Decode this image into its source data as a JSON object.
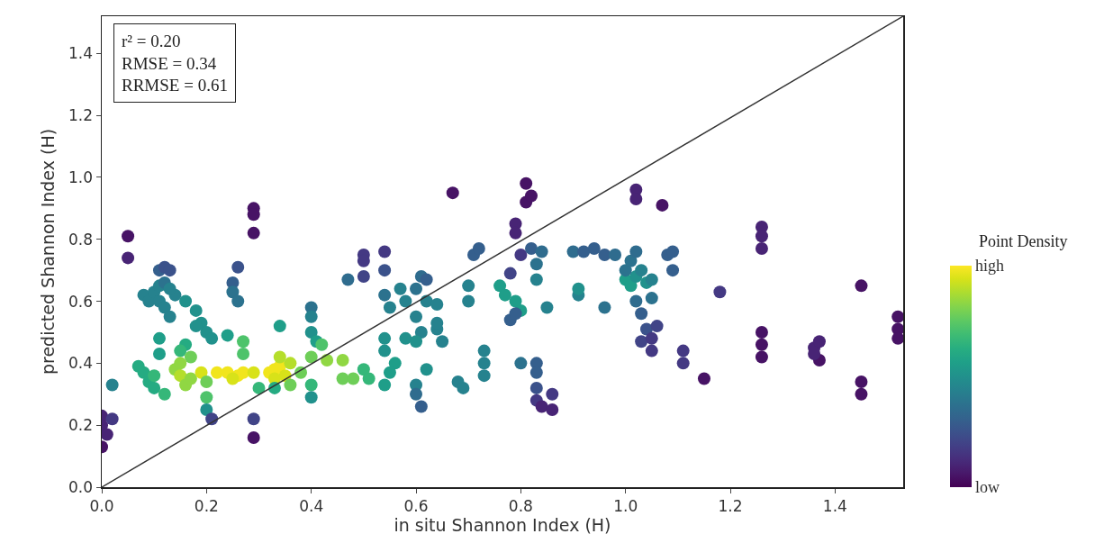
{
  "chart_data": {
    "type": "scatter",
    "xlabel": "in situ Shannon Index (H)",
    "ylabel": "predicted Shannon Index (H)",
    "clabel": "Point Density",
    "annotations": [
      "r² = 0.20\nRMSE = 0.34\nRRMSE = 0.61"
    ],
    "xlim": [
      0,
      1.53
    ],
    "ylim": [
      0,
      1.52
    ],
    "xticks": [
      {
        "value": 0,
        "label": "0.0"
      },
      0.2,
      0.4,
      0.6,
      0.8,
      {
        "value": 1,
        "label": "1.0"
      },
      1.2,
      1.4
    ],
    "yticks": [
      {
        "value": 0,
        "label": "0.0"
      },
      0.2,
      0.4,
      0.6,
      0.8,
      {
        "value": 1,
        "label": "1.0"
      },
      1.2,
      1.4
    ],
    "clim": [
      0,
      1
    ],
    "cticks": [
      {
        "value": 1,
        "label": "high"
      },
      {
        "value": 0,
        "label": "low"
      }
    ],
    "grid": false,
    "marker": "circle",
    "series": [
      {
        "colors": [
          "#482475",
          "#482475",
          "#482475",
          "#471365",
          "#443983",
          "#26828e",
          "#471365",
          "#482475",
          "#26828e",
          "#26828e",
          "#26828e",
          "#26828e",
          "#2c728e",
          "#355f8d",
          "#3b528b",
          "#3b528b",
          "#26828e",
          "#26828e",
          "#26828e",
          "#26828e",
          "#26828e",
          "#21918c",
          "#21918c",
          "#21918c",
          "#21918c",
          "#21918c",
          "#21918c",
          "#1f9e89",
          "#1f9e89",
          "#25ab82",
          "#35b779",
          "#6ece58",
          "#25ab82",
          "#25ab82",
          "#25ab82",
          "#25ab82",
          "#35b779",
          "#35b779",
          "#90d743",
          "#b5de2b",
          "#90d743",
          "#90d743",
          "#90d743",
          "#d8e219",
          "#6ece58",
          "#f1e51d",
          "#f1e51d",
          "#f1e51d",
          "#f1e51d",
          "#d8e219",
          "#d8e219",
          "#f1e51d",
          "#f1e51d",
          "#f1e51d",
          "#d8e219",
          "#d8e219",
          "#b5de2b",
          "#b5de2b",
          "#6ece58",
          "#6ece58",
          "#4ec36b",
          "#21918c",
          "#414487",
          "#1f9e89",
          "#4ec36b",
          "#4ec36b",
          "#355f8d",
          "#2c728e",
          "#3b528b",
          "#2c728e",
          "#471365",
          "#471365",
          "#471365",
          "#414487",
          "#471365",
          "#1f9e89",
          "#35b779",
          "#25ab82",
          "#2c728e",
          "#26828e",
          "#21918c",
          "#1f9e89",
          "#4ec36b",
          "#90d743",
          "#90d743",
          "#6ece58",
          "#35b779",
          "#21918c",
          "#443983",
          "#443983",
          "#414487",
          "#443983",
          "#3b528b",
          "#2f6c8e",
          "#6ece58",
          "#6ece58",
          "#35b779",
          "#35b779",
          "#2c728e",
          "#26828e",
          "#21918c",
          "#21918c",
          "#1f9e89",
          "#1f9e89",
          "#1f9e89",
          "#26828e",
          "#26828e",
          "#21918c",
          "#2c728e",
          "#2f6c8e",
          "#355f8d",
          "#26828e",
          "#26828e",
          "#26828e",
          "#21918c",
          "#21918c",
          "#26828e",
          "#2f6c8e",
          "#355f8d",
          "#26828e",
          "#26828e",
          "#26828e",
          "#26828e",
          "#471365",
          "#26828e",
          "#26828e",
          "#26828e",
          "#26828e",
          "#355f8d",
          "#355f8d",
          "#26828e",
          "#26828e",
          "#26828e",
          "#1f9e89",
          "#1f9e89",
          "#1f9e89",
          "#1f9e89",
          "#355f8d",
          "#355f8d",
          "#482475",
          "#482475",
          "#443983",
          "#414487",
          "#471365",
          "#471365",
          "#471365",
          "#355f8d",
          "#2c728e",
          "#2f6c8e",
          "#26828e",
          "#2c728e",
          "#355f8d",
          "#355f8d",
          "#3b528b",
          "#443983",
          "#482475",
          "#443983",
          "#482475",
          "#26828e",
          "#2f6c8e",
          "#355f8d",
          "#355f8d",
          "#355f8d",
          "#26828e",
          "#21918c",
          "#2c728e",
          "#2f6c8e",
          "#1f9e89",
          "#1f9e89",
          "#21918c",
          "#26828e",
          "#2c728e",
          "#2c728e",
          "#2f6c8e",
          "#2f6c8e",
          "#355f8d",
          "#3b528b",
          "#414487",
          "#443983",
          "#443983",
          "#414487",
          "#2c728e",
          "#21918c",
          "#26828e",
          "#482475",
          "#482475",
          "#471365",
          "#355f8d",
          "#355f8d",
          "#355f8d",
          "#443983",
          "#443983",
          "#471365",
          "#443983",
          "#482475",
          "#482475",
          "#482475",
          "#471365",
          "#471365",
          "#471365",
          "#482475",
          "#482475",
          "#471365",
          "#482475",
          "#471365",
          "#471365",
          "#471365",
          "#471365",
          "#471365",
          "#471365"
        ],
        "x": [
          0,
          0,
          0.01,
          0,
          0.02,
          0.02,
          0.05,
          0.05,
          0.08,
          0.09,
          0.1,
          0.11,
          0.12,
          0.11,
          0.12,
          0.13,
          0.11,
          0.12,
          0.13,
          0.14,
          0.13,
          0.16,
          0.18,
          0.19,
          0.2,
          0.21,
          0.18,
          0.11,
          0.11,
          0.16,
          0.15,
          0.17,
          0.07,
          0.08,
          0.09,
          0.1,
          0.12,
          0.1,
          0.14,
          0.15,
          0.16,
          0.17,
          0.15,
          0.19,
          0.2,
          0.22,
          0.24,
          0.26,
          0.27,
          0.29,
          0.25,
          0.32,
          0.33,
          0.34,
          0.35,
          0.33,
          0.36,
          0.34,
          0.38,
          0.36,
          0.2,
          0.2,
          0.21,
          0.24,
          0.27,
          0.27,
          0.25,
          0.25,
          0.26,
          0.26,
          0.29,
          0.29,
          0.29,
          0.29,
          0.29,
          0.34,
          0.3,
          0.33,
          0.4,
          0.4,
          0.4,
          0.41,
          0.42,
          0.43,
          0.46,
          0.4,
          0.4,
          0.4,
          0.5,
          0.5,
          0.5,
          0.54,
          0.54,
          0.47,
          0.46,
          0.48,
          0.5,
          0.51,
          0.54,
          0.55,
          0.54,
          0.54,
          0.56,
          0.54,
          0.55,
          0.57,
          0.58,
          0.58,
          0.6,
          0.61,
          0.62,
          0.6,
          0.61,
          0.62,
          0.6,
          0.62,
          0.6,
          0.6,
          0.61,
          0.64,
          0.64,
          0.64,
          0.65,
          0.67,
          0.68,
          0.69,
          0.7,
          0.7,
          0.71,
          0.72,
          0.73,
          0.73,
          0.73,
          0.76,
          0.77,
          0.79,
          0.8,
          0.78,
          0.79,
          0.79,
          0.79,
          0.8,
          0.78,
          0.81,
          0.81,
          0.82,
          0.82,
          0.83,
          0.84,
          0.83,
          0.8,
          0.83,
          0.83,
          0.83,
          0.83,
          0.84,
          0.86,
          0.86,
          0.85,
          0.9,
          0.92,
          0.94,
          0.96,
          0.91,
          0.91,
          0.96,
          0.98,
          1.0,
          1.01,
          1.02,
          1.03,
          1.0,
          1.01,
          1.02,
          1.02,
          1.03,
          1.04,
          1.03,
          1.05,
          1.05,
          1.06,
          1.05,
          1.04,
          1.05,
          1.02,
          1.02,
          1.07,
          1.08,
          1.09,
          1.09,
          1.11,
          1.11,
          1.15,
          1.18,
          1.26,
          1.26,
          1.26,
          1.26,
          1.26,
          1.26,
          1.36,
          1.37,
          1.37,
          1.36,
          1.45,
          1.45,
          1.45,
          1.52,
          1.52,
          1.52
        ],
        "values": [
          0.23,
          0.2,
          0.17,
          0.13,
          0.22,
          0.33,
          0.81,
          0.74,
          0.62,
          0.6,
          0.63,
          0.65,
          0.66,
          0.7,
          0.71,
          0.7,
          0.6,
          0.58,
          0.55,
          0.62,
          0.64,
          0.6,
          0.57,
          0.53,
          0.5,
          0.48,
          0.52,
          0.48,
          0.43,
          0.46,
          0.44,
          0.42,
          0.39,
          0.37,
          0.34,
          0.32,
          0.3,
          0.36,
          0.38,
          0.36,
          0.33,
          0.35,
          0.4,
          0.37,
          0.34,
          0.37,
          0.37,
          0.36,
          0.37,
          0.37,
          0.35,
          0.37,
          0.38,
          0.39,
          0.36,
          0.35,
          0.4,
          0.42,
          0.37,
          0.33,
          0.29,
          0.25,
          0.22,
          0.49,
          0.47,
          0.43,
          0.66,
          0.63,
          0.71,
          0.6,
          0.9,
          0.88,
          0.82,
          0.22,
          0.16,
          0.52,
          0.32,
          0.32,
          0.58,
          0.55,
          0.5,
          0.47,
          0.46,
          0.41,
          0.41,
          0.42,
          0.33,
          0.29,
          0.75,
          0.73,
          0.68,
          0.76,
          0.7,
          0.67,
          0.35,
          0.35,
          0.38,
          0.35,
          0.62,
          0.58,
          0.48,
          0.44,
          0.4,
          0.33,
          0.37,
          0.64,
          0.6,
          0.48,
          0.64,
          0.68,
          0.67,
          0.55,
          0.5,
          0.6,
          0.47,
          0.38,
          0.33,
          0.3,
          0.26,
          0.51,
          0.53,
          0.59,
          0.47,
          0.95,
          0.34,
          0.32,
          0.65,
          0.6,
          0.75,
          0.77,
          0.44,
          0.4,
          0.36,
          0.65,
          0.62,
          0.6,
          0.57,
          0.54,
          0.56,
          0.85,
          0.82,
          0.75,
          0.69,
          0.92,
          0.98,
          0.94,
          0.77,
          0.72,
          0.76,
          0.67,
          0.4,
          0.4,
          0.37,
          0.32,
          0.28,
          0.26,
          0.3,
          0.25,
          0.58,
          0.76,
          0.76,
          0.77,
          0.75,
          0.62,
          0.64,
          0.58,
          0.75,
          0.67,
          0.65,
          0.68,
          0.7,
          0.7,
          0.73,
          0.76,
          0.6,
          0.56,
          0.51,
          0.47,
          0.48,
          0.44,
          0.52,
          0.61,
          0.66,
          0.67,
          0.96,
          0.93,
          0.91,
          0.75,
          0.76,
          0.7,
          0.44,
          0.4,
          0.35,
          0.63,
          0.84,
          0.81,
          0.77,
          0.5,
          0.46,
          0.42,
          0.45,
          0.47,
          0.41,
          0.43,
          0.65,
          0.34,
          0.3,
          0.55,
          0.51,
          0.48
        ]
      },
      {
        "type": "line",
        "x": [
          0,
          1.53
        ],
        "values": [
          0,
          1.52
        ],
        "color": "#333333",
        "marker": "none",
        "line_style": "solid"
      }
    ]
  }
}
